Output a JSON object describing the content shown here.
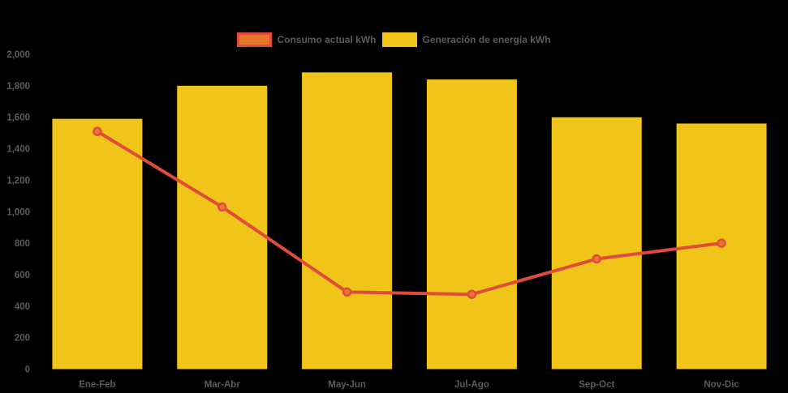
{
  "page": {
    "background": "#000000",
    "text_color": "#5b5b5b"
  },
  "legend": {
    "position": "top",
    "items": [
      {
        "label": "Consumo actual kWh",
        "swatch_fill": "#e8772e",
        "swatch_border": "#e14b3b"
      },
      {
        "label": "Generación de energía kWh",
        "swatch_fill": "#f0c419",
        "swatch_border": "#f0c419"
      }
    ]
  },
  "chart_data": {
    "type": "bar",
    "title": "",
    "xlabel": "",
    "ylabel": "",
    "categories": [
      "Ene-Feb",
      "Mar-Abr",
      "May-Jun",
      "Jul-Ago",
      "Sep-Oct",
      "Nov-Dic"
    ],
    "series": [
      {
        "name": "Generación de energía kWh",
        "type": "bar",
        "color": "#f0c419",
        "values": [
          1590,
          1800,
          1885,
          1840,
          1600,
          1560
        ]
      },
      {
        "name": "Consumo actual kWh",
        "type": "line",
        "color": "#e14b3b",
        "marker_color": "#e8772e",
        "values": [
          1510,
          1030,
          490,
          475,
          700,
          800
        ]
      }
    ],
    "ylim": [
      0,
      2000
    ],
    "y_tick_step": 200,
    "y_tick_labels": [
      "0",
      "200",
      "400",
      "600",
      "800",
      "1,000",
      "1,200",
      "1,400",
      "1,600",
      "1,800",
      "2,000"
    ],
    "grid": false,
    "legend_position": "top",
    "background": "#000000"
  }
}
